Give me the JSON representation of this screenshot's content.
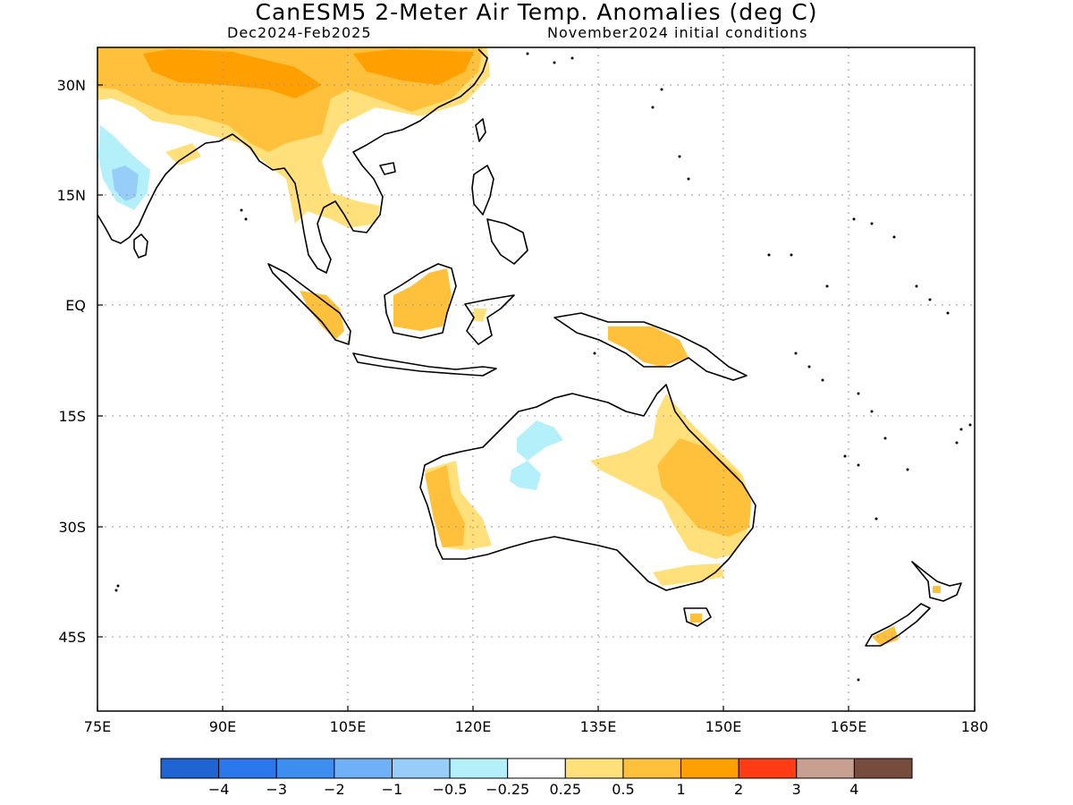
{
  "title": "CanESM5 2-Meter Air Temp. Anomalies (deg C)",
  "subtitle_left": "Dec2024-Feb2025",
  "subtitle_right": "November2024 initial conditions",
  "map": {
    "lon_ticks": [
      "75E",
      "90E",
      "105E",
      "120E",
      "135E",
      "150E",
      "165E",
      "180"
    ],
    "lat_ticks": [
      "30N",
      "15N",
      "EQ",
      "15S",
      "30S",
      "45S"
    ],
    "lon_range": [
      75,
      180
    ],
    "lat_range": [
      35,
      -55
    ],
    "grid": true
  },
  "colorbar": {
    "labels": [
      "-4",
      "-3",
      "-2",
      "-1",
      "-0.5",
      "-0.25",
      "0.25",
      "0.5",
      "1",
      "2",
      "3",
      "4"
    ],
    "colors": [
      "#1e64d2",
      "#2a78ec",
      "#3c8ff0",
      "#6fb0f6",
      "#96cdf9",
      "#b4f0fa",
      "#ffffff",
      "#ffe07a",
      "#ffc03c",
      "#ffa000",
      "#ff3c14",
      "#c8a092",
      "#784c3c"
    ]
  },
  "colors": {
    "warm_light": "#ffe07a",
    "warm_mid": "#ffc03c",
    "warm_strong": "#ffa000",
    "cool_light": "#b4f0fa",
    "cool_mid": "#96cdf9",
    "cool_strong": "#6fb0f6"
  }
}
